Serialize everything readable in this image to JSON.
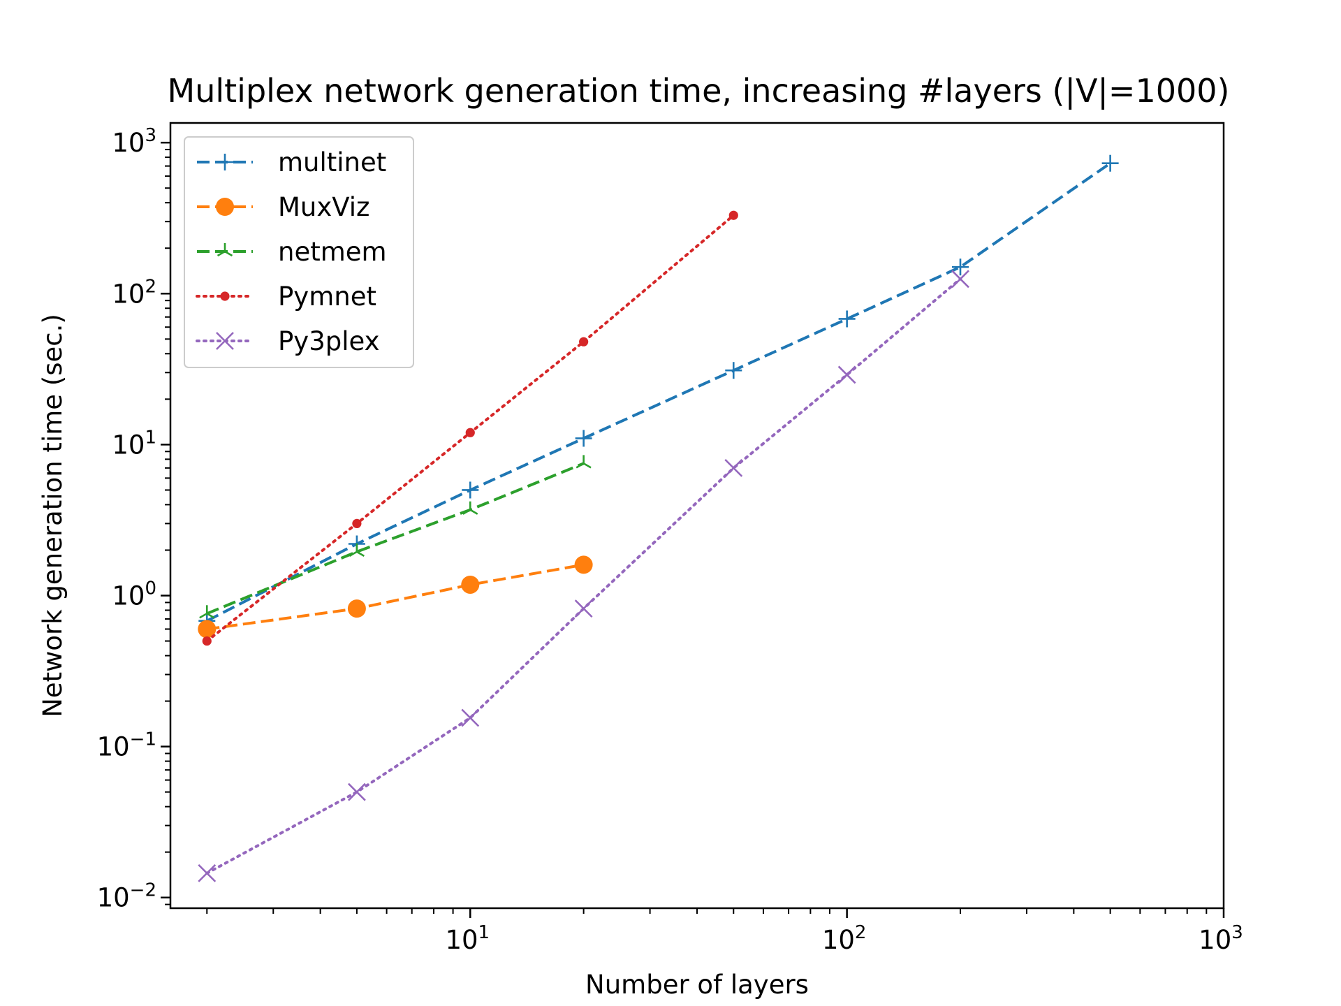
{
  "chart_data": {
    "type": "line",
    "title": "Multiplex network generation time, increasing #layers (|V|=1000)",
    "xlabel": "Number of layers",
    "ylabel": "Network generation time (sec.)",
    "xscale": "log",
    "yscale": "log",
    "xlim": [
      1.6,
      1000
    ],
    "ylim": [
      0.0085,
      1350
    ],
    "grid": false,
    "legend_position": "top-left",
    "x_ticks": [
      {
        "value": 10,
        "base": "10",
        "exp": "1"
      },
      {
        "value": 100,
        "base": "10",
        "exp": "2"
      },
      {
        "value": 1000,
        "base": "10",
        "exp": "3"
      }
    ],
    "y_ticks": [
      {
        "value": 0.01,
        "base": "10",
        "exp": "−2"
      },
      {
        "value": 0.1,
        "base": "10",
        "exp": "−1"
      },
      {
        "value": 1,
        "base": "10",
        "exp": "0"
      },
      {
        "value": 10,
        "base": "10",
        "exp": "1"
      },
      {
        "value": 100,
        "base": "10",
        "exp": "2"
      },
      {
        "value": 1000,
        "base": "10",
        "exp": "3"
      }
    ],
    "series": [
      {
        "name": "multinet",
        "color": "#1f77b4",
        "linestyle": "dashed",
        "marker": "plus",
        "x": [
          2,
          5,
          10,
          20,
          50,
          100,
          200,
          500
        ],
        "y": [
          0.68,
          2.2,
          5.0,
          11.0,
          31,
          68,
          150,
          730
        ]
      },
      {
        "name": "MuxViz",
        "color": "#ff7f0e",
        "linestyle": "dashed",
        "marker": "circle",
        "x": [
          2,
          5,
          10,
          20
        ],
        "y": [
          0.6,
          0.82,
          1.18,
          1.6
        ]
      },
      {
        "name": "netmem",
        "color": "#2ca02c",
        "linestyle": "dashed",
        "marker": "tri",
        "x": [
          2,
          5,
          10,
          20
        ],
        "y": [
          0.76,
          1.95,
          3.7,
          7.5
        ]
      },
      {
        "name": "Pymnet",
        "color": "#d62728",
        "linestyle": "dotted",
        "marker": "dot",
        "x": [
          2,
          5,
          10,
          20,
          50
        ],
        "y": [
          0.5,
          3.0,
          12,
          48,
          330
        ]
      },
      {
        "name": "Py3plex",
        "color": "#9467bd",
        "linestyle": "dotted",
        "marker": "x",
        "x": [
          2,
          5,
          10,
          20,
          50,
          100,
          200
        ],
        "y": [
          0.0145,
          0.05,
          0.155,
          0.82,
          7.0,
          29,
          125
        ]
      }
    ]
  }
}
